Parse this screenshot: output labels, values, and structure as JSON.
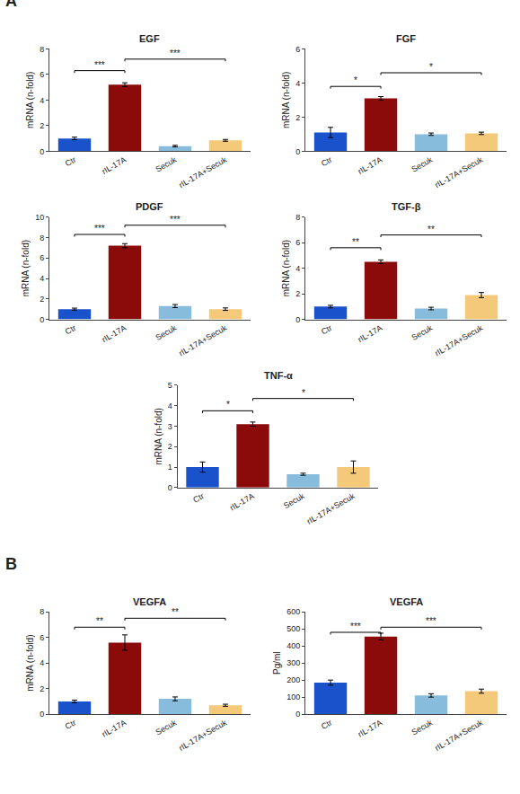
{
  "chart_data": [
    {
      "type": "bar",
      "title": "EGF",
      "ylabel": "mRNA (n-fold)",
      "categories": [
        "Ctr",
        "rIL-17A",
        "Secuk",
        "rIL-17A+Secuk"
      ],
      "values": [
        1.0,
        5.2,
        0.4,
        0.85
      ],
      "errors": [
        0.1,
        0.15,
        0.06,
        0.07
      ],
      "colors": [
        "#1a52cc",
        "#8b0a0a",
        "#87bcdc",
        "#f5c97a"
      ],
      "ylim": [
        0,
        8
      ],
      "yticks": [
        0,
        2,
        4,
        6,
        8
      ],
      "grid": false,
      "brackets": [
        {
          "x1": 0,
          "x2": 1,
          "y": 6.3,
          "label": "***"
        },
        {
          "x1": 1,
          "x2": 3,
          "y": 7.2,
          "label": "***"
        }
      ],
      "annotations": [
        "A"
      ]
    },
    {
      "type": "bar",
      "title": "FGF",
      "ylabel": "mRNA (n-fold)",
      "categories": [
        "Ctr",
        "rIL-17A",
        "Secuk",
        "rIL-17A+Secuk"
      ],
      "values": [
        1.1,
        3.1,
        1.0,
        1.05
      ],
      "errors": [
        0.3,
        0.1,
        0.07,
        0.07
      ],
      "colors": [
        "#1a52cc",
        "#8b0a0a",
        "#87bcdc",
        "#f5c97a"
      ],
      "ylim": [
        0,
        6
      ],
      "yticks": [
        0,
        2,
        4,
        6
      ],
      "grid": false,
      "brackets": [
        {
          "x1": 0,
          "x2": 1,
          "y": 3.8,
          "label": "*"
        },
        {
          "x1": 1,
          "x2": 3,
          "y": 4.6,
          "label": "*"
        }
      ]
    },
    {
      "type": "bar",
      "title": "PDGF",
      "ylabel": "mRNA (n-fold)",
      "categories": [
        "Ctr",
        "rIL-17A",
        "Secuk",
        "rIL-17A+Secuk"
      ],
      "values": [
        1.0,
        7.2,
        1.3,
        1.0
      ],
      "errors": [
        0.1,
        0.2,
        0.15,
        0.12
      ],
      "colors": [
        "#1a52cc",
        "#8b0a0a",
        "#87bcdc",
        "#f5c97a"
      ],
      "ylim": [
        0,
        10
      ],
      "yticks": [
        0,
        2,
        4,
        6,
        8,
        10
      ],
      "grid": false,
      "brackets": [
        {
          "x1": 0,
          "x2": 1,
          "y": 8.3,
          "label": "***"
        },
        {
          "x1": 1,
          "x2": 3,
          "y": 9.2,
          "label": "***"
        }
      ]
    },
    {
      "type": "bar",
      "title": "TGF-β",
      "ylabel": "mRNA (n-fold)",
      "categories": [
        "Ctr",
        "rIL-17A",
        "Secuk",
        "rIL-17A+Secuk"
      ],
      "values": [
        1.0,
        4.5,
        0.85,
        1.9
      ],
      "errors": [
        0.1,
        0.15,
        0.1,
        0.2
      ],
      "colors": [
        "#1a52cc",
        "#8b0a0a",
        "#87bcdc",
        "#f5c97a"
      ],
      "ylim": [
        0,
        8
      ],
      "yticks": [
        0,
        2,
        4,
        6,
        8
      ],
      "grid": false,
      "brackets": [
        {
          "x1": 0,
          "x2": 1,
          "y": 5.6,
          "label": "**"
        },
        {
          "x1": 1,
          "x2": 3,
          "y": 6.6,
          "label": "**"
        }
      ]
    },
    {
      "type": "bar",
      "title": "TNF-α",
      "ylabel": "mRNA (n-fold)",
      "categories": [
        "Ctr",
        "rIL-17A",
        "Secuk",
        "rIL-17A+Secuk"
      ],
      "values": [
        1.0,
        3.1,
        0.65,
        1.0
      ],
      "errors": [
        0.25,
        0.1,
        0.05,
        0.3
      ],
      "colors": [
        "#1a52cc",
        "#8b0a0a",
        "#87bcdc",
        "#f5c97a"
      ],
      "ylim": [
        0,
        5
      ],
      "yticks": [
        0,
        1,
        2,
        3,
        4,
        5
      ],
      "grid": false,
      "brackets": [
        {
          "x1": 0,
          "x2": 1,
          "y": 3.75,
          "label": "*"
        },
        {
          "x1": 1,
          "x2": 3,
          "y": 4.35,
          "label": "*"
        }
      ]
    },
    {
      "type": "bar",
      "title": "VEGFA",
      "ylabel": "mRNA (n-fold)",
      "categories": [
        "Ctr",
        "rIL-17A",
        "Secuk",
        "rIL-17A+Secuk"
      ],
      "values": [
        1.0,
        5.6,
        1.2,
        0.7
      ],
      "errors": [
        0.1,
        0.6,
        0.15,
        0.08
      ],
      "colors": [
        "#1a52cc",
        "#8b0a0a",
        "#87bcdc",
        "#f5c97a"
      ],
      "ylim": [
        0,
        8
      ],
      "yticks": [
        0,
        2,
        4,
        6,
        8
      ],
      "grid": false,
      "brackets": [
        {
          "x1": 0,
          "x2": 1,
          "y": 6.8,
          "label": "**"
        },
        {
          "x1": 1,
          "x2": 3,
          "y": 7.5,
          "label": "**"
        }
      ],
      "annotations": [
        "B"
      ]
    },
    {
      "type": "bar",
      "title": "VEGFA",
      "ylabel": "Pg/ml",
      "categories": [
        "Ctr",
        "rIL-17A",
        "Secuk",
        "rIL-17A+Secuk"
      ],
      "values": [
        185,
        455,
        110,
        135
      ],
      "errors": [
        15,
        20,
        10,
        12
      ],
      "colors": [
        "#1a52cc",
        "#8b0a0a",
        "#87bcdc",
        "#f5c97a"
      ],
      "ylim": [
        0,
        600
      ],
      "yticks": [
        0,
        100,
        200,
        300,
        400,
        500,
        600
      ],
      "grid": false,
      "brackets": [
        {
          "x1": 0,
          "x2": 1,
          "y": 480,
          "label": "***"
        },
        {
          "x1": 1,
          "x2": 3,
          "y": 510,
          "label": "***"
        }
      ]
    }
  ]
}
